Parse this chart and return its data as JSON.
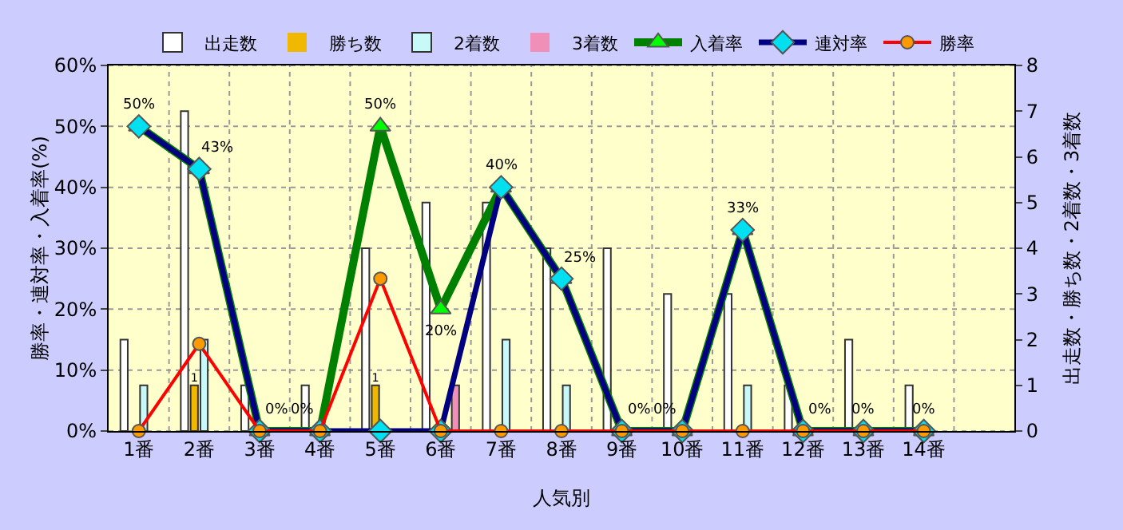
{
  "chart_data": {
    "type": "bar",
    "xlabel": "人気別",
    "ylabel": "勝率・連対率・入着率(%)",
    "y2label": "出走数・勝ち数・2着数・3着数",
    "categories": [
      "1番",
      "2番",
      "3番",
      "4番",
      "5番",
      "6番",
      "7番",
      "8番",
      "9番",
      "10番",
      "11番",
      "12番",
      "13番",
      "14番",
      null
    ],
    "series": [
      {
        "name": "出走数",
        "axis": "y2",
        "color": "#ffffff",
        "values": [
          2,
          7,
          1,
          1,
          4,
          5,
          5,
          4,
          4,
          3,
          3,
          1,
          2,
          1,
          null
        ]
      },
      {
        "name": "勝ち数",
        "axis": "y2",
        "color": "#f0b800",
        "values": [
          0,
          1,
          0,
          0,
          1,
          0,
          0,
          0,
          0,
          0,
          0,
          0,
          0,
          0,
          null
        ],
        "value_labels": [
          null,
          "1",
          null,
          null,
          "1",
          null,
          null,
          null,
          null,
          null,
          null,
          null,
          null,
          null,
          null
        ]
      },
      {
        "name": "2着数",
        "axis": "y2",
        "color": "#c8f8f8",
        "values": [
          1,
          2,
          0,
          0,
          0,
          0,
          2,
          1,
          0,
          0,
          1,
          0,
          0,
          0,
          null
        ]
      },
      {
        "name": "3着数",
        "axis": "y2",
        "color": "#f090b8",
        "values": [
          0,
          0,
          0,
          0,
          0,
          1,
          0,
          0,
          0,
          0,
          0,
          0,
          0,
          0,
          null
        ]
      },
      {
        "name": "入着率",
        "type": "line",
        "color": "#008000",
        "marker": "triangle",
        "colors": [
          "#00ff00",
          "#00ff00",
          "#00ff00",
          "#00ff00",
          "#00ff00",
          "#00ff00",
          "#00ff00",
          "#00ff00",
          "#00ff00",
          "#00ff00",
          "#00ff00",
          "#00ff00",
          "#00ff00",
          "#00ff00",
          "#00ff00"
        ],
        "values": [
          50,
          43,
          0,
          0,
          50,
          20,
          40,
          25,
          0,
          0,
          33,
          0,
          0,
          0,
          null
        ],
        "value_labels": [
          "50%",
          "43%",
          "0%",
          "0%",
          "50%",
          "20%",
          "40%",
          "25%",
          "0%",
          "0%",
          "33%",
          "0%",
          "0%",
          "0%",
          null
        ]
      },
      {
        "name": "連対率",
        "type": "line",
        "color": "#000080",
        "marker": "diamond",
        "colors": [
          "#00e0f0",
          "#00e0f0",
          "#00e0f0",
          "#00e0f0",
          "#00e0f0",
          "#00e0f0",
          "#00e0f0",
          "#00e0f0",
          "#00e0f0",
          "#00e0f0",
          "#00e0f0",
          "#00e0f0",
          "#00e0f0",
          "#00e0f0",
          "#00e0f0"
        ],
        "values": [
          50,
          43,
          0,
          0,
          0,
          0,
          40,
          25,
          0,
          0,
          33,
          0,
          0,
          0,
          null
        ]
      },
      {
        "name": "勝率",
        "type": "line",
        "color": "#ff0000",
        "marker": "circle",
        "colors": [
          "#ff9900",
          "#ff9900",
          "#ff9900",
          "#ff9900",
          "#ff9900",
          "#ff9900",
          "#ff9900",
          "#ff9900",
          "#ff9900",
          "#ff9900",
          "#ff9900",
          "#ff9900",
          "#ff9900",
          "#ff9900",
          "#ff9900"
        ],
        "values": [
          0,
          14.3,
          0,
          0,
          25,
          0,
          0,
          0,
          0,
          0,
          0,
          0,
          0,
          0,
          null
        ]
      }
    ],
    "ylim": [
      0,
      60
    ],
    "yticks": [
      {
        "value": 0,
        "label": "0%"
      },
      {
        "value": 10,
        "label": "10%"
      },
      {
        "value": 20,
        "label": "20%"
      },
      {
        "value": 30,
        "label": "30%"
      },
      {
        "value": 40,
        "label": "40%"
      },
      {
        "value": 50,
        "label": "50%"
      },
      {
        "value": 60,
        "label": "60%"
      }
    ],
    "y2lim": [
      0,
      8
    ],
    "y2ticks": [
      0,
      1,
      2,
      3,
      4,
      5,
      6,
      7,
      8
    ],
    "grid": true,
    "legend": "top"
  }
}
